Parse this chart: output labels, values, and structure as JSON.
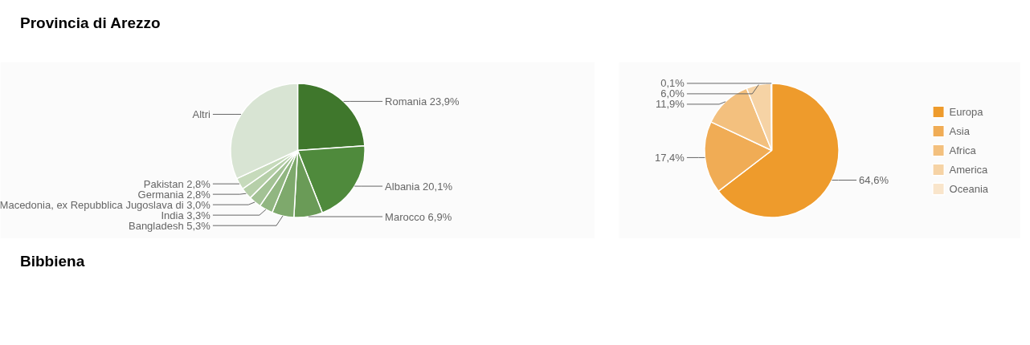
{
  "chart_data": [
    {
      "type": "pie",
      "title": "Provincia di Arezzo",
      "categories": [
        "Romania",
        "Albania",
        "Marocco",
        "Bangladesh",
        "India",
        "Macedonia, ex Repubblica Jugoslava di",
        "Germania",
        "Pakistan",
        "Altri"
      ],
      "values": [
        23.9,
        20.1,
        6.9,
        5.3,
        3.3,
        3.0,
        2.8,
        2.8,
        31.9
      ],
      "colors": [
        "#3f772c",
        "#4f8a3c",
        "#6a9b57",
        "#7ea96c",
        "#91b681",
        "#a3c295",
        "#b6cfa9",
        "#c6dabb",
        "#d8e4d3"
      ],
      "value_labels": [
        "23,9%",
        "20,1%",
        "6,9%",
        "5,3%",
        "3,3%",
        "3,0%",
        "2,8%",
        "2,8%",
        null
      ]
    },
    {
      "type": "pie",
      "annotations": [
        "Bibbiena"
      ],
      "categories": [
        "Europa",
        "Asia",
        "Africa",
        "America",
        "Oceania"
      ],
      "values": [
        64.6,
        17.4,
        11.9,
        6.0,
        0.1
      ],
      "colors": [
        "#ee9b2c",
        "#f0ac55",
        "#f3c07e",
        "#f6d3a5",
        "#f9e5cb"
      ],
      "value_labels": [
        "64,6%",
        "17,4%",
        "11,9%",
        "6,0%",
        "0,1%"
      ],
      "legend": "right"
    }
  ]
}
